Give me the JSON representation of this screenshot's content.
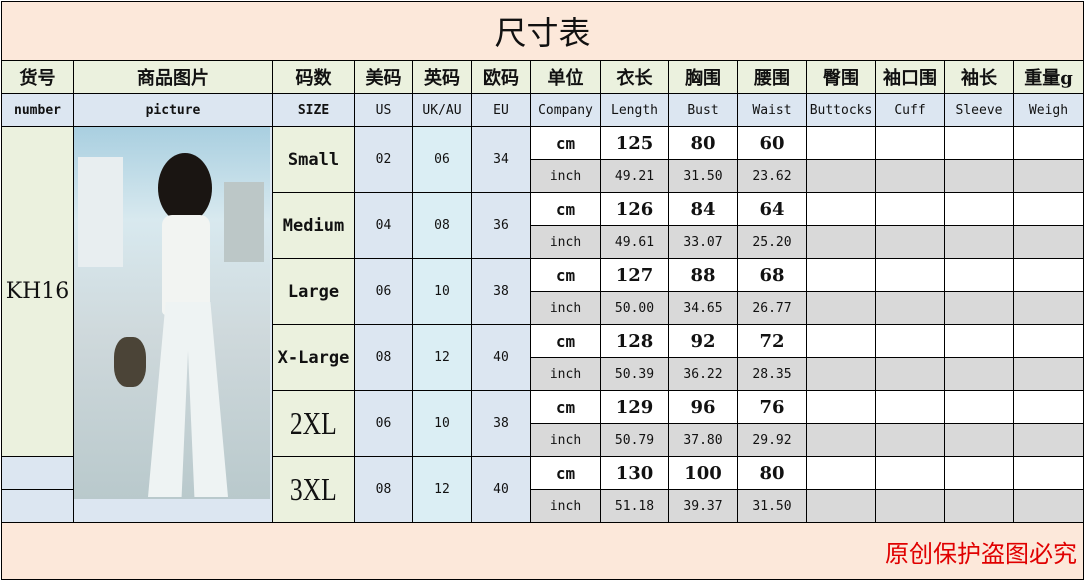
{
  "title": "尺寸表",
  "headers_cn": [
    "货号",
    "商品图片",
    "码数",
    "美码",
    "英码",
    "欧码",
    "单位",
    "衣长",
    "胸围",
    "腰围",
    "臀围",
    "袖口围",
    "袖长",
    "重量g"
  ],
  "headers_en": [
    "number",
    "picture",
    "SIZE",
    "US",
    "UK/AU",
    "EU",
    "Company",
    "Length",
    "Bust",
    "Waist",
    "Buttocks",
    "Cuff",
    "Sleeve",
    "Weigh"
  ],
  "product_number": "KH16",
  "unit_cm": "cm",
  "unit_inch": "inch",
  "rows": [
    {
      "size": "Small",
      "us": "02",
      "uk": "06",
      "eu": "34",
      "cm": [
        "125",
        "80",
        "60"
      ],
      "inch": [
        "49.21",
        "31.50",
        "23.62"
      ]
    },
    {
      "size": "Medium",
      "us": "04",
      "uk": "08",
      "eu": "36",
      "cm": [
        "126",
        "84",
        "64"
      ],
      "inch": [
        "49.61",
        "33.07",
        "25.20"
      ]
    },
    {
      "size": "Large",
      "us": "06",
      "uk": "10",
      "eu": "38",
      "cm": [
        "127",
        "88",
        "68"
      ],
      "inch": [
        "50.00",
        "34.65",
        "26.77"
      ]
    },
    {
      "size": "X-Large",
      "us": "08",
      "uk": "12",
      "eu": "40",
      "cm": [
        "128",
        "92",
        "72"
      ],
      "inch": [
        "50.39",
        "36.22",
        "28.35"
      ]
    },
    {
      "size": "2XL",
      "us": "06",
      "uk": "10",
      "eu": "38",
      "cm": [
        "129",
        "96",
        "76"
      ],
      "inch": [
        "50.79",
        "37.80",
        "29.92"
      ]
    },
    {
      "size": "3XL",
      "us": "08",
      "uk": "12",
      "eu": "40",
      "cm": [
        "130",
        "100",
        "80"
      ],
      "inch": [
        "51.18",
        "39.37",
        "31.50"
      ]
    }
  ],
  "footer": "原创保护盗图必究",
  "colors": {
    "title_bg": "#fce8da",
    "header_cn_bg": "#ebf1de",
    "header_en_bg": "#dce6f1",
    "inch_bg": "#d9d9d9",
    "footer_text": "#e00000"
  }
}
